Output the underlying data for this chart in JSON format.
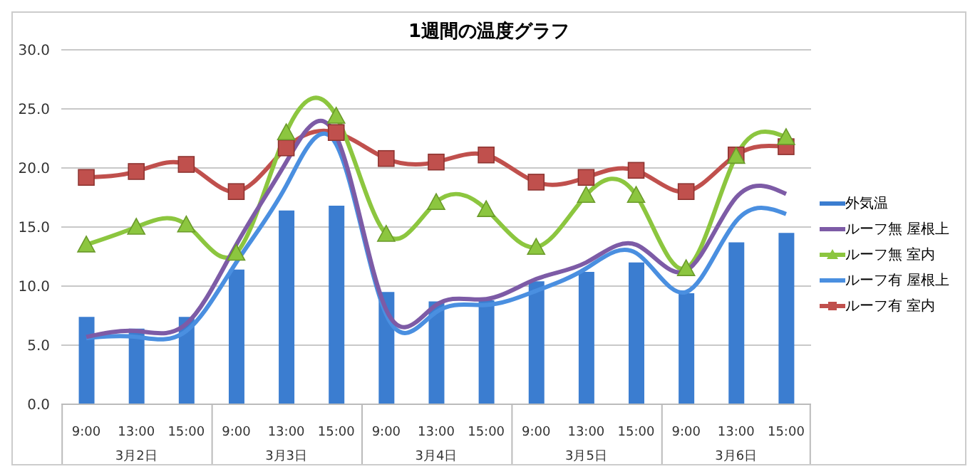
{
  "chart_data": {
    "type": "bar",
    "title": "1週間の温度グラフ",
    "categories": [
      "9:00",
      "13:00",
      "15:00",
      "9:00",
      "13:00",
      "15:00",
      "9:00",
      "13:00",
      "15:00",
      "9:00",
      "13:00",
      "15:00",
      "9:00",
      "13:00",
      "15:00"
    ],
    "annotations": [
      "3月2日",
      "3月3日",
      "3月4日",
      "3月5日",
      "3月6日"
    ],
    "series": [
      {
        "name": "外気温",
        "color": "#3b7dd0",
        "values": [
          7.4,
          6.4,
          7.4,
          11.4,
          16.4,
          16.8,
          9.5,
          8.7,
          8.8,
          10.4,
          11.2,
          12.0,
          9.4,
          13.7,
          14.5
        ]
      },
      {
        "name": "ルーフ無  屋根上",
        "type": "line",
        "marker": "none",
        "color": "#7d5ba6",
        "values": [
          5.7,
          6.2,
          6.8,
          13.5,
          20.5,
          22.7,
          8.0,
          8.4,
          8.9,
          10.6,
          12.0,
          13.5,
          11.3,
          17.5,
          17.8
        ]
      },
      {
        "name": "ルーフ無  室内",
        "type": "line",
        "marker": "triangle",
        "color": "#8cc63f",
        "values": [
          13.5,
          15.0,
          15.2,
          12.8,
          23.0,
          24.4,
          14.4,
          17.1,
          16.5,
          13.3,
          17.7,
          17.7,
          11.5,
          21.0,
          22.6
        ]
      },
      {
        "name": "ルーフ有  屋根上",
        "type": "line",
        "marker": "none",
        "color": "#4a8fe0",
        "values": [
          5.6,
          5.7,
          6.2,
          12.0,
          18.5,
          22.0,
          7.6,
          7.8,
          8.4,
          9.6,
          11.5,
          12.8,
          9.5,
          15.5,
          16.1
        ]
      },
      {
        "name": "ルーフ有  室内",
        "type": "line",
        "marker": "square",
        "color": "#c0504d",
        "values": [
          19.2,
          19.7,
          20.3,
          18.0,
          21.7,
          23.0,
          20.8,
          20.5,
          21.1,
          18.8,
          19.2,
          19.8,
          18.0,
          21.1,
          21.8
        ]
      }
    ],
    "ylim": [
      0,
      30
    ],
    "yticks": [
      {
        "value": 0,
        "label": "0.0"
      },
      {
        "value": 5,
        "label": "5.0"
      },
      {
        "value": 10,
        "label": "10.0"
      },
      {
        "value": 15,
        "label": "15.0"
      },
      {
        "value": 20,
        "label": "20.0"
      },
      {
        "value": 25,
        "label": "25.0"
      },
      {
        "value": 30,
        "label": "30.0"
      }
    ],
    "grid": "y",
    "legend": "right"
  }
}
